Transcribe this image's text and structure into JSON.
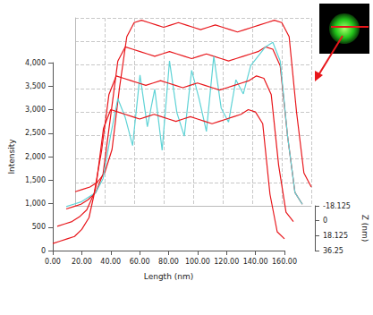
{
  "chart_data": {
    "type": "line",
    "x_label": "Length (nm)",
    "y_label": "Intensity",
    "z_label": "Z (nm)",
    "x": [
      0,
      5,
      10,
      15,
      20,
      25,
      30,
      35,
      40,
      45,
      50,
      55,
      60,
      65,
      70,
      75,
      80,
      85,
      90,
      95,
      100,
      105,
      110,
      115,
      120,
      125,
      130,
      135,
      140,
      145,
      150,
      155,
      160
    ],
    "xlim": [
      0,
      160
    ],
    "xticks": [
      {
        "value": 0,
        "label": "0.00"
      },
      {
        "value": 20,
        "label": "20.00"
      },
      {
        "value": 40,
        "label": "40.00"
      },
      {
        "value": 60,
        "label": "60.00"
      },
      {
        "value": 80,
        "label": "80.00"
      },
      {
        "value": 100,
        "label": "100.00"
      },
      {
        "value": 120,
        "label": "120.00"
      },
      {
        "value": 140,
        "label": "140.00"
      },
      {
        "value": 160,
        "label": "160.00"
      }
    ],
    "ylim": [
      0,
      4000
    ],
    "yticks": [
      0,
      500,
      {
        "value": 1000,
        "label": "1,000"
      },
      {
        "value": 1500,
        "label": "1,500"
      },
      {
        "value": 2000,
        "label": "2,000"
      },
      {
        "value": 2500,
        "label": "2,500"
      },
      {
        "value": 3000,
        "label": "3,000"
      },
      {
        "value": 3500,
        "label": "3,500"
      },
      {
        "value": 4000,
        "label": "4,000"
      }
    ],
    "zlim": [
      -18.125,
      36.25
    ],
    "zticks": [
      -18.125,
      0,
      18.125,
      36.25
    ],
    "grid": true,
    "series": [
      {
        "z": -18.125,
        "color": "#e8161b",
        "values": [
          300,
          350,
          400,
          500,
          700,
          1200,
          2500,
          3600,
          3900,
          3950,
          3900,
          3850,
          3800,
          3850,
          3900,
          3850,
          3800,
          3750,
          3800,
          3850,
          3800,
          3750,
          3700,
          3750,
          3800,
          3850,
          3900,
          3950,
          3900,
          3600,
          2000,
          700,
          400
        ]
      },
      {
        "z": 0,
        "color": "#e8161b",
        "values": [
          250,
          300,
          350,
          450,
          600,
          1000,
          2200,
          3400,
          3700,
          3650,
          3600,
          3550,
          3500,
          3550,
          3600,
          3550,
          3500,
          3450,
          3500,
          3550,
          3500,
          3450,
          3400,
          3450,
          3500,
          3550,
          3600,
          3700,
          3650,
          3300,
          1800,
          600,
          350
        ]
      },
      {
        "z": 0,
        "color": "#5fd3d6",
        "values": [
          300,
          350,
          400,
          500,
          600,
          900,
          1800,
          2600,
          2200,
          1600,
          3100,
          2000,
          2800,
          1500,
          3400,
          2300,
          1800,
          3200,
          2600,
          1900,
          3500,
          2400,
          2100,
          3000,
          2700,
          3300,
          3500,
          3700,
          3800,
          3400,
          1800,
          600,
          350
        ]
      },
      {
        "z": 18.125,
        "color": "#e8161b",
        "values": [
          200,
          250,
          300,
          400,
          550,
          900,
          1800,
          3000,
          3400,
          3350,
          3300,
          3250,
          3200,
          3250,
          3300,
          3250,
          3200,
          3150,
          3200,
          3250,
          3200,
          3150,
          3100,
          3150,
          3200,
          3250,
          3300,
          3400,
          3350,
          3000,
          1500,
          500,
          300
        ]
      },
      {
        "z": 36.25,
        "color": "#e8161b",
        "values": [
          150,
          200,
          250,
          300,
          450,
          700,
          1400,
          2600,
          3000,
          2950,
          2900,
          2850,
          2800,
          2850,
          2900,
          2850,
          2800,
          2750,
          2800,
          2850,
          2800,
          2750,
          2700,
          2750,
          2800,
          2850,
          2900,
          3000,
          2950,
          2700,
          1200,
          400,
          250
        ]
      }
    ]
  }
}
